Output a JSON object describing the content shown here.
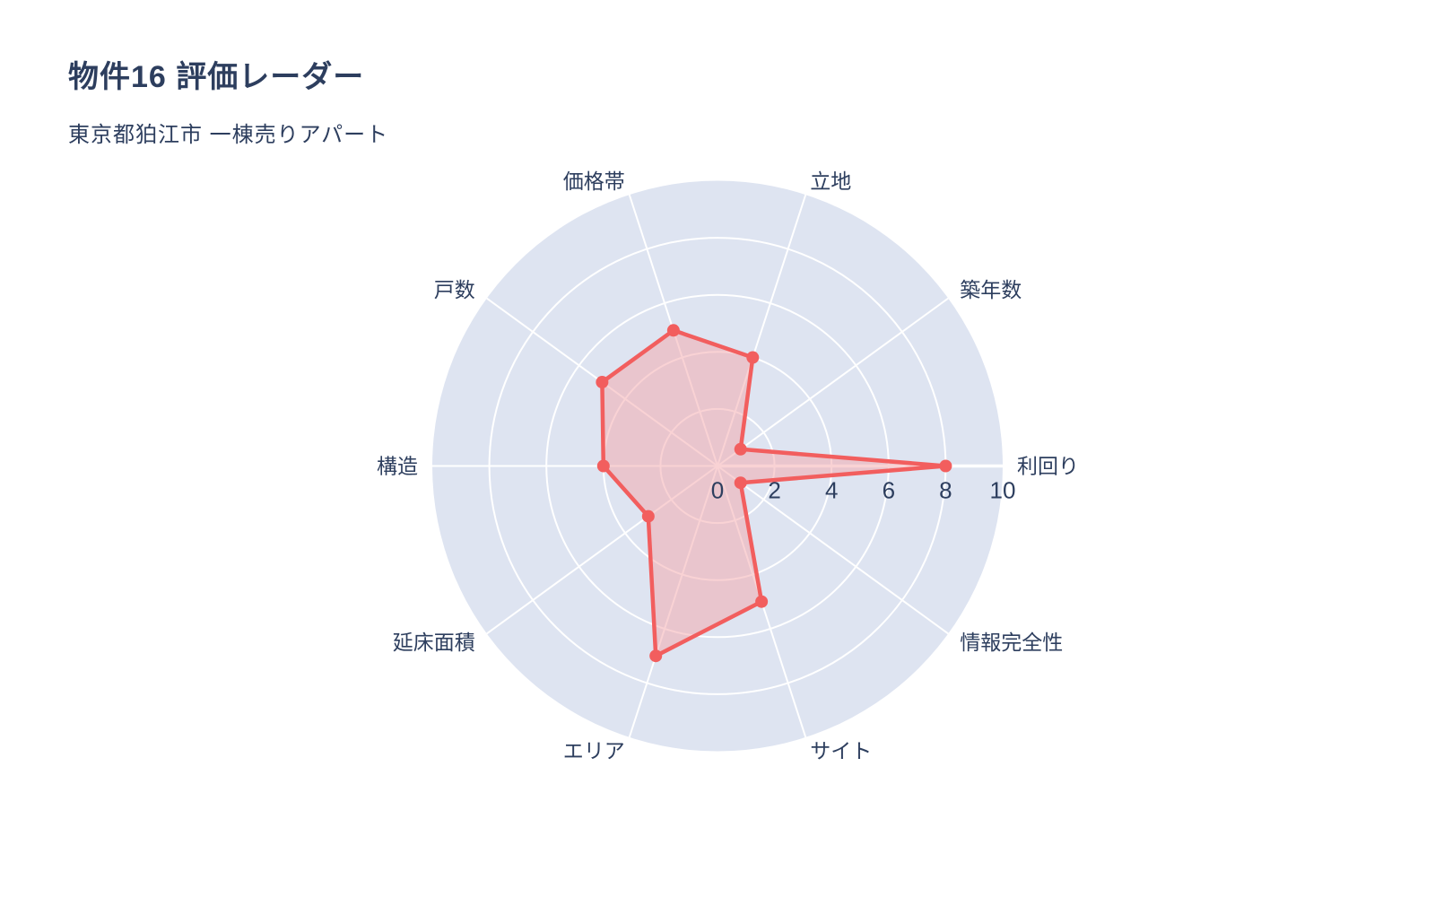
{
  "header": {
    "title": "物件16 評価レーダー",
    "subtitle": "東京都狛江市 一棟売りアパート"
  },
  "chart_data": {
    "type": "radar",
    "title": "物件16 評価レーダー",
    "subtitle": "東京都狛江市 一棟売りアパート",
    "categories": [
      "利回り",
      "築年数",
      "立地",
      "価格帯",
      "戸数",
      "構造",
      "延床面積",
      "エリア",
      "サイト",
      "情報完全性"
    ],
    "values": [
      8,
      1,
      4,
      5,
      5,
      4,
      3,
      7,
      5,
      1
    ],
    "rlim": [
      0,
      10
    ],
    "rticks": [
      0,
      2,
      4,
      6,
      8,
      10
    ],
    "start_angle_deg": 0,
    "direction": "counterclockwise",
    "grid": "on",
    "legend": "none",
    "colors": {
      "text": "#2d3e5e",
      "polar_background": "#dee4f1",
      "grid_line": "#ffffff",
      "series_line": "#f25e5e",
      "series_fill": "rgba(244,166,170,0.5)",
      "marker": "#f25e5e"
    }
  }
}
